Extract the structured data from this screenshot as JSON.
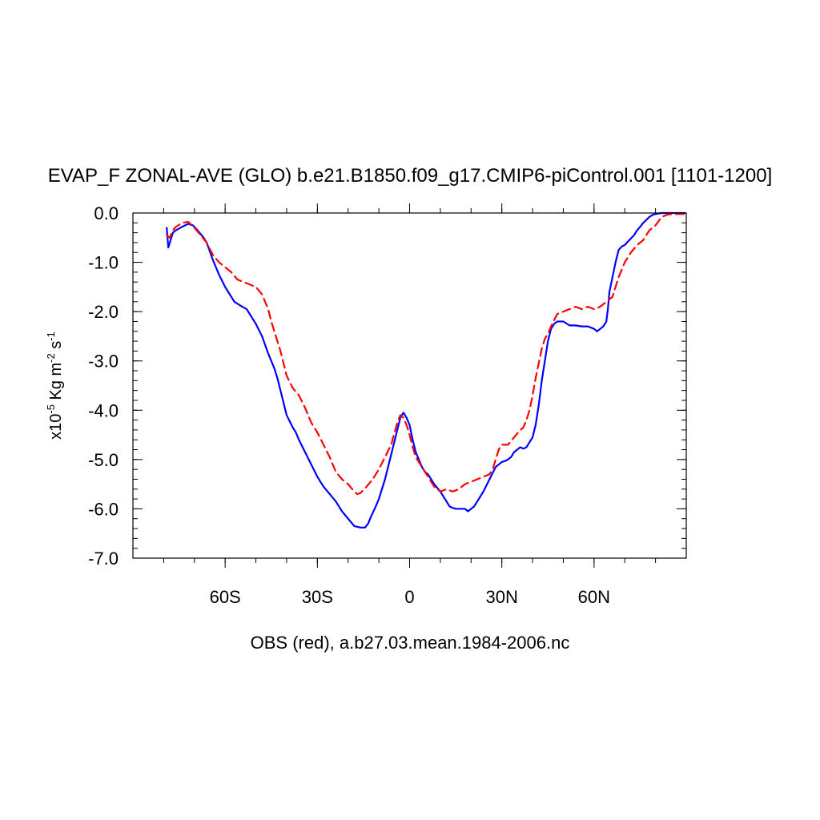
{
  "chart_data": {
    "type": "line",
    "title": "EVAP_F ZONAL-AVE (GLO) b.e21.B1850.f09_g17.CMIP6-piControl.001 [1101-1200]",
    "xlabel": "OBS (red), a.b27.03.mean.1984-2006.nc",
    "ylabel": {
      "prefix": "x10",
      "exp1": "-5",
      "mid": " Kg m",
      "exp2": "-2",
      "mid2": " s",
      "exp3": "-1"
    },
    "xlim": [
      -90,
      90
    ],
    "ylim": [
      -7.0,
      0.0
    ],
    "x_ticks": [
      {
        "value": -60,
        "label": "60S"
      },
      {
        "value": -30,
        "label": "30S"
      },
      {
        "value": 0,
        "label": "0"
      },
      {
        "value": 30,
        "label": "30N"
      },
      {
        "value": 60,
        "label": "60N"
      }
    ],
    "y_ticks": [
      {
        "value": 0,
        "label": "0.0"
      },
      {
        "value": -1,
        "label": "-1.0"
      },
      {
        "value": -2,
        "label": "-2.0"
      },
      {
        "value": -3,
        "label": "-3.0"
      },
      {
        "value": -4,
        "label": "-4.0"
      },
      {
        "value": -5,
        "label": "-5.0"
      },
      {
        "value": -6,
        "label": "-6.0"
      },
      {
        "value": -7,
        "label": "-7.0"
      }
    ],
    "series": [
      {
        "name": "b.e21.B1850.f09_g17.CMIP6-piControl.001",
        "color": "#0000ff",
        "dash": false,
        "x": [
          -79,
          -78.5,
          -78,
          -77,
          -76,
          -74,
          -72,
          -70.5,
          -69,
          -67,
          -66,
          -64,
          -62,
          -60,
          -57,
          -55,
          -53,
          -52,
          -50,
          -48,
          -46,
          -44,
          -43,
          -42,
          -40,
          -38,
          -37,
          -36,
          -34,
          -32,
          -30,
          -28,
          -26,
          -24,
          -22,
          -20,
          -18,
          -16,
          -14.5,
          -13.5,
          -12.5,
          -11,
          -10,
          -8,
          -6,
          -4,
          -3,
          -2,
          -1,
          0,
          1,
          2,
          3,
          4,
          5,
          6,
          8,
          10,
          11,
          13,
          14,
          15,
          16,
          18,
          19,
          20,
          21,
          22,
          24,
          26,
          28,
          30,
          31,
          32,
          33,
          34,
          35,
          36,
          37,
          38,
          40,
          41,
          42,
          43,
          44,
          45,
          46,
          47,
          48,
          50,
          52,
          54,
          56,
          58,
          60,
          61,
          62,
          63,
          64,
          64.5,
          65,
          66,
          67,
          68,
          69,
          70,
          71,
          73,
          74,
          75,
          76,
          78,
          79,
          80,
          82,
          84,
          86,
          88,
          89.5
        ],
        "y": [
          -0.3,
          -0.7,
          -0.6,
          -0.4,
          -0.35,
          -0.28,
          -0.22,
          -0.25,
          -0.35,
          -0.5,
          -0.6,
          -0.95,
          -1.25,
          -1.5,
          -1.8,
          -1.88,
          -1.95,
          -2.05,
          -2.25,
          -2.5,
          -2.85,
          -3.15,
          -3.35,
          -3.6,
          -4.1,
          -4.35,
          -4.45,
          -4.6,
          -4.85,
          -5.1,
          -5.35,
          -5.55,
          -5.7,
          -5.85,
          -6.05,
          -6.2,
          -6.35,
          -6.38,
          -6.38,
          -6.3,
          -6.15,
          -5.95,
          -5.8,
          -5.4,
          -4.9,
          -4.4,
          -4.15,
          -4.05,
          -4.15,
          -4.3,
          -4.6,
          -4.85,
          -5.0,
          -5.15,
          -5.25,
          -5.3,
          -5.5,
          -5.65,
          -5.75,
          -5.95,
          -5.98,
          -6.0,
          -6.0,
          -6.0,
          -6.05,
          -6.0,
          -5.95,
          -5.85,
          -5.65,
          -5.4,
          -5.15,
          -5.05,
          -5.03,
          -5.0,
          -4.95,
          -4.85,
          -4.8,
          -4.75,
          -4.78,
          -4.75,
          -4.55,
          -4.3,
          -3.9,
          -3.4,
          -3.0,
          -2.6,
          -2.35,
          -2.25,
          -2.2,
          -2.2,
          -2.28,
          -2.28,
          -2.3,
          -2.3,
          -2.35,
          -2.4,
          -2.35,
          -2.3,
          -2.2,
          -1.95,
          -1.6,
          -1.3,
          -1.0,
          -0.75,
          -0.68,
          -0.65,
          -0.58,
          -0.45,
          -0.35,
          -0.28,
          -0.2,
          -0.08,
          -0.04,
          -0.02,
          0.0,
          0.0,
          0.0,
          0.0,
          0.0
        ]
      },
      {
        "name": "OBS",
        "color": "#ff0000",
        "dash": true,
        "x": [
          -79,
          -78,
          -77,
          -76,
          -74,
          -72,
          -70,
          -68,
          -66,
          -64,
          -62,
          -60,
          -58,
          -56,
          -54,
          -52,
          -50,
          -48,
          -46,
          -45,
          -44,
          -43,
          -42,
          -40,
          -38,
          -36,
          -34,
          -32,
          -30,
          -28,
          -26,
          -24,
          -22,
          -20,
          -18,
          -17,
          -16,
          -14,
          -12,
          -10,
          -8,
          -6,
          -4,
          -3,
          -2,
          -1,
          0,
          1,
          2,
          3,
          4,
          6,
          8,
          10,
          12,
          14,
          16,
          18,
          20,
          22,
          24,
          26,
          27,
          28,
          29,
          30,
          32,
          34,
          36,
          37,
          38,
          39,
          40,
          41,
          42,
          43,
          44,
          45,
          46,
          48,
          50,
          52,
          54,
          56,
          58,
          60,
          62,
          64,
          65,
          66,
          67,
          68,
          70,
          72,
          74,
          76,
          78,
          80,
          82,
          84,
          86,
          88,
          89.5
        ],
        "y": [
          -0.45,
          -0.5,
          -0.35,
          -0.28,
          -0.2,
          -0.18,
          -0.3,
          -0.45,
          -0.6,
          -0.85,
          -1.0,
          -1.1,
          -1.2,
          -1.35,
          -1.4,
          -1.45,
          -1.5,
          -1.65,
          -1.95,
          -2.2,
          -2.4,
          -2.6,
          -2.8,
          -3.3,
          -3.55,
          -3.7,
          -3.95,
          -4.25,
          -4.45,
          -4.7,
          -4.95,
          -5.25,
          -5.4,
          -5.5,
          -5.65,
          -5.7,
          -5.68,
          -5.55,
          -5.4,
          -5.2,
          -4.95,
          -4.7,
          -4.25,
          -4.1,
          -4.15,
          -4.3,
          -4.5,
          -4.75,
          -4.95,
          -5.05,
          -5.15,
          -5.35,
          -5.55,
          -5.65,
          -5.6,
          -5.65,
          -5.6,
          -5.5,
          -5.45,
          -5.4,
          -5.35,
          -5.3,
          -5.2,
          -5.0,
          -4.8,
          -4.7,
          -4.7,
          -4.55,
          -4.4,
          -4.35,
          -4.2,
          -4.0,
          -3.7,
          -3.35,
          -3.05,
          -2.75,
          -2.55,
          -2.45,
          -2.3,
          -2.05,
          -2.0,
          -1.95,
          -1.9,
          -1.95,
          -1.9,
          -1.95,
          -1.9,
          -1.8,
          -1.75,
          -1.7,
          -1.5,
          -1.3,
          -1.0,
          -0.8,
          -0.65,
          -0.55,
          -0.35,
          -0.25,
          -0.08,
          -0.03,
          -0.02,
          -0.02,
          -0.02
        ]
      }
    ]
  }
}
